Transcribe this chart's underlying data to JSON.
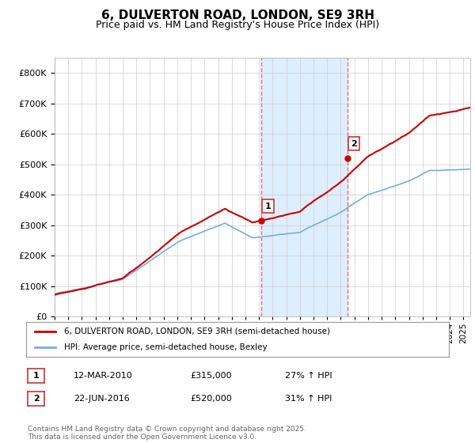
{
  "title": "6, DULVERTON ROAD, LONDON, SE9 3RH",
  "subtitle": "Price paid vs. HM Land Registry's House Price Index (HPI)",
  "ytick_values": [
    0,
    100000,
    200000,
    300000,
    400000,
    500000,
    600000,
    700000,
    800000
  ],
  "ylim": [
    0,
    850000
  ],
  "xlim_start": 1995.0,
  "xlim_end": 2025.5,
  "sale1_x": 2010.19,
  "sale1_y": 315000,
  "sale1_label": "1",
  "sale2_x": 2016.47,
  "sale2_y": 520000,
  "sale2_label": "2",
  "red_line_color": "#cc0000",
  "blue_line_color": "#7aadd4",
  "shaded_region_color": "#ddeeff",
  "vline_color": "#ff6666",
  "legend_label_red": "6, DULVERTON ROAD, LONDON, SE9 3RH (semi-detached house)",
  "legend_label_blue": "HPI: Average price, semi-detached house, Bexley",
  "table_row1": [
    "1",
    "12-MAR-2010",
    "£315,000",
    "27% ↑ HPI"
  ],
  "table_row2": [
    "2",
    "22-JUN-2016",
    "£520,000",
    "31% ↑ HPI"
  ],
  "footnote": "Contains HM Land Registry data © Crown copyright and database right 2025.\nThis data is licensed under the Open Government Licence v3.0.",
  "background_color": "#ffffff"
}
